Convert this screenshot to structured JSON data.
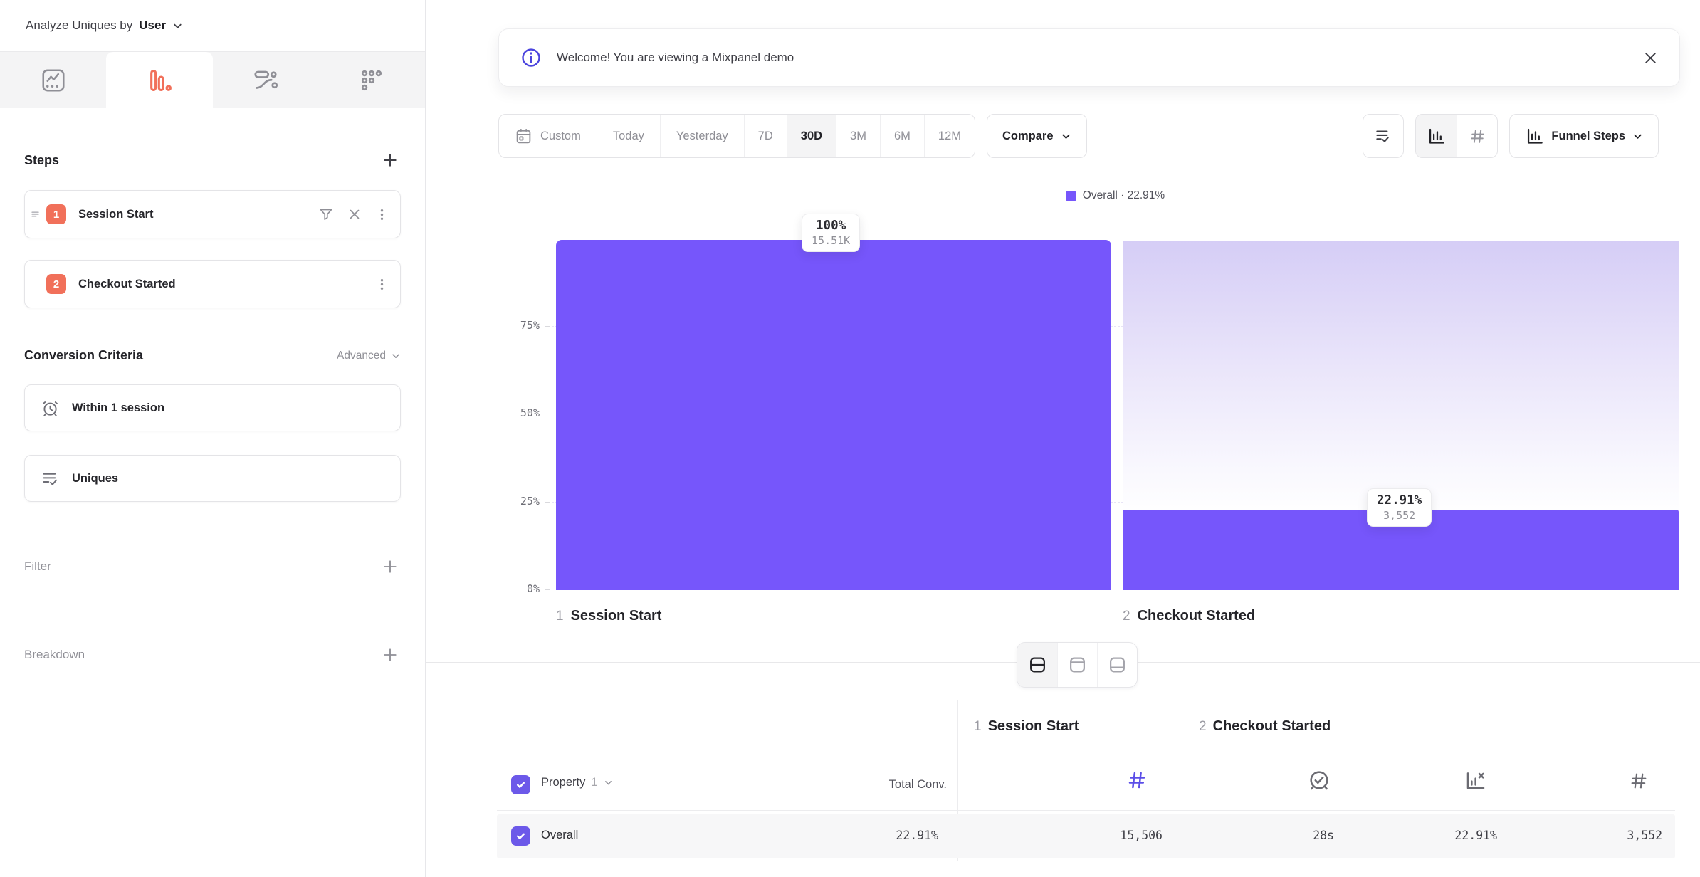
{
  "colors": {
    "accent_purple": "#7656FB",
    "coral": "#F1705A",
    "indigo_icon": "#5B4EE8",
    "info_blue": "#4B44DE"
  },
  "sidebar": {
    "analyze": {
      "label": "Analyze Uniques by",
      "value": "User"
    },
    "tabs": [
      {
        "name": "insights",
        "active": false
      },
      {
        "name": "funnels",
        "active": true
      },
      {
        "name": "flows",
        "active": false
      },
      {
        "name": "retention",
        "active": false
      }
    ],
    "steps": {
      "title": "Steps",
      "items": [
        {
          "num": "1",
          "label": "Session Start"
        },
        {
          "num": "2",
          "label": "Checkout Started"
        }
      ]
    },
    "conversion": {
      "title": "Conversion Criteria",
      "advanced": "Advanced",
      "window": "Within 1 session",
      "counting": "Uniques"
    },
    "filter_title": "Filter",
    "breakdown_title": "Breakdown"
  },
  "banner": {
    "message": "Welcome! You are viewing a Mixpanel demo"
  },
  "toolbar": {
    "custom": "Custom",
    "ranges": [
      "Today",
      "Yesterday",
      "7D",
      "30D",
      "3M",
      "6M",
      "12M"
    ],
    "selected": "30D",
    "compare": "Compare",
    "view": "Funnel Steps"
  },
  "chart_data": {
    "type": "bar",
    "categories": [
      "Session Start",
      "Checkout Started"
    ],
    "step_numbers": [
      "1",
      "2"
    ],
    "series": [
      {
        "name": "Overall",
        "values": [
          100,
          22.91
        ],
        "counts": [
          15506,
          3552
        ]
      }
    ],
    "value_labels": [
      {
        "pct": "100%",
        "count": "15.51K"
      },
      {
        "pct": "22.91%",
        "count": "3,552"
      }
    ],
    "yticks": [
      "75%",
      "50%",
      "25%",
      "0%"
    ],
    "ylim": [
      0,
      100
    ],
    "grid": "dashed horizontal at 25/50/75",
    "legend": {
      "label": "Overall · 22.91%",
      "position": "top-center",
      "color": "#7656FB"
    }
  },
  "view_toggle": {
    "options": [
      "split-view",
      "top-panel-view",
      "bottom-panel-view"
    ],
    "selected": "split-view"
  },
  "table": {
    "groups": [
      {
        "num": "1",
        "label": "Session Start"
      },
      {
        "num": "2",
        "label": "Checkout Started"
      }
    ],
    "property": {
      "label": "Property",
      "index": "1"
    },
    "total_conv_label": "Total Conv.",
    "rows": [
      {
        "name": "Overall",
        "total_conv": "22.91%",
        "step1_count": "15,506",
        "avg_time": "28s",
        "conv_rate": "22.91%",
        "step2_count": "3,552"
      }
    ]
  }
}
